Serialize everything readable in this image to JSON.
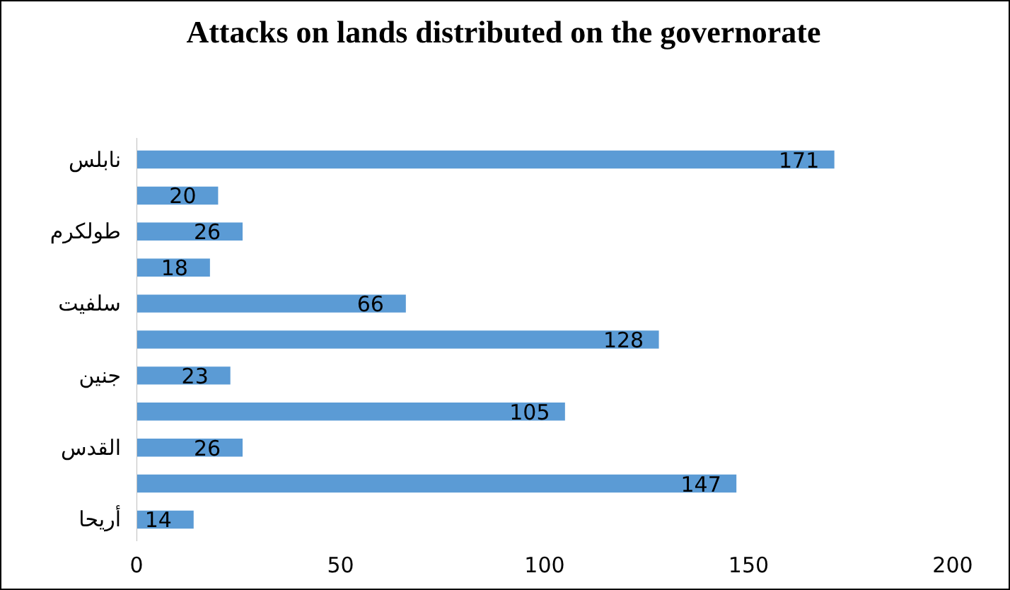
{
  "chart_data": {
    "type": "bar",
    "orientation": "horizontal",
    "title": "Attacks on lands distributed on the governorate",
    "categories": [
      "نابلس",
      null,
      "طولكرم",
      null,
      "سلفيت",
      null,
      "جنين",
      null,
      "القدس",
      null,
      "أريحا"
    ],
    "values": [
      171,
      20,
      26,
      18,
      66,
      128,
      23,
      105,
      26,
      147,
      14
    ],
    "color": "#5b9bd5",
    "xlim": [
      0,
      200
    ],
    "xticks": [
      0,
      50,
      100,
      150,
      200
    ],
    "grid": false,
    "data_labels": true
  }
}
